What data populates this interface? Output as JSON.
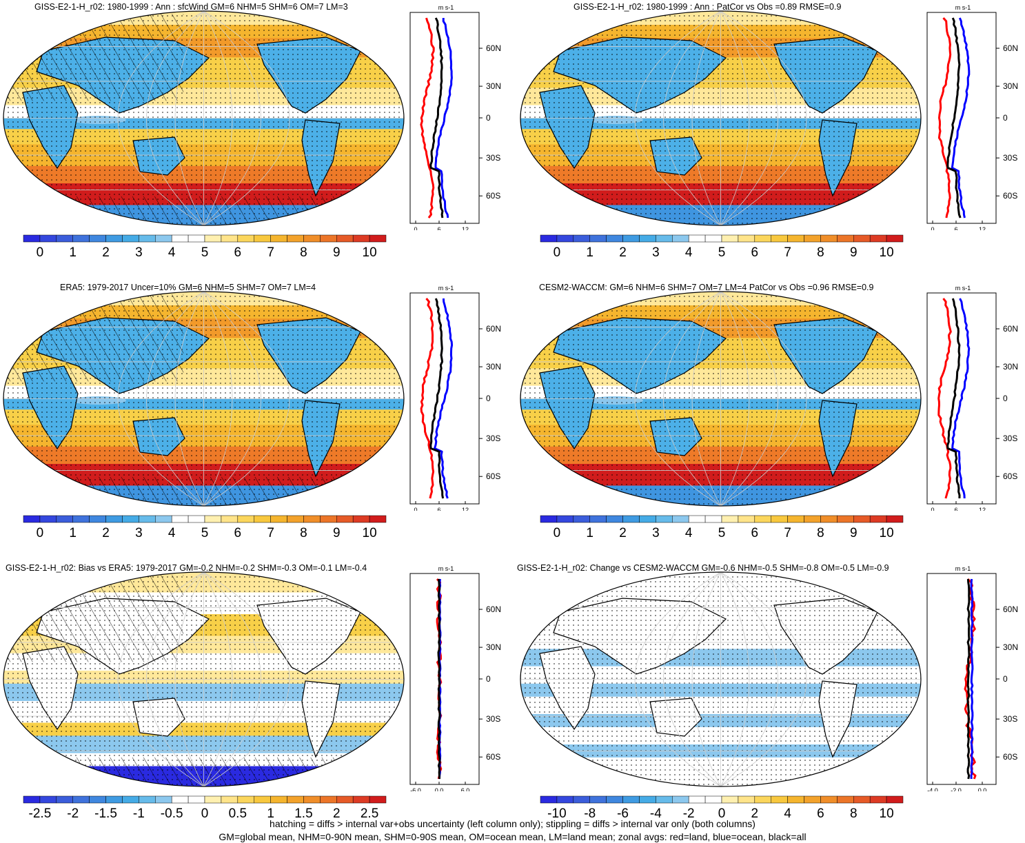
{
  "panels": [
    {
      "title": "GISS-E2-1-H_r02: 1980-1999 : Ann : sfcWind GM=6 NHM=5 SHM=6 OM=7 LM=3",
      "colorbar_labels": [
        "0",
        "1",
        "2",
        "3",
        "4",
        "5",
        "6",
        "7",
        "8",
        "9",
        "10"
      ],
      "zonal_unit": "m s-1",
      "zonal_xticks": [
        "0",
        "6",
        "12"
      ],
      "lat_ticks": [
        "60N",
        "30N",
        "0",
        "30S",
        "60S"
      ],
      "hatching": true,
      "style": "mean"
    },
    {
      "title": "GISS-E2-1-H_r02: 1980-1999 : Ann : PatCor vs Obs =0.89 RMSE=0.9",
      "colorbar_labels": [
        "0",
        "1",
        "2",
        "3",
        "4",
        "5",
        "6",
        "7",
        "8",
        "9",
        "10"
      ],
      "zonal_unit": "m s-1",
      "zonal_xticks": [
        "0",
        "6",
        "12"
      ],
      "lat_ticks": [
        "60N",
        "30N",
        "0",
        "30S",
        "60S"
      ],
      "hatching": false,
      "style": "mean"
    },
    {
      "title": "ERA5: 1979-2017 Uncer=10% GM=6 NHM=5 SHM=7 OM=7 LM=4",
      "colorbar_labels": [
        "0",
        "1",
        "2",
        "3",
        "4",
        "5",
        "6",
        "7",
        "8",
        "9",
        "10"
      ],
      "zonal_unit": "m s-1",
      "zonal_xticks": [
        "0",
        "6",
        "12"
      ],
      "lat_ticks": [
        "60N",
        "30N",
        "0",
        "30S",
        "60S"
      ],
      "hatching": true,
      "style": "mean"
    },
    {
      "title": "CESM2-WACCM: GM=6 NHM=6 SHM=7 OM=7 LM=4 PatCor vs Obs =0.96 RMSE=0.9",
      "colorbar_labels": [
        "0",
        "1",
        "2",
        "3",
        "4",
        "5",
        "6",
        "7",
        "8",
        "9",
        "10"
      ],
      "zonal_unit": "m s-1",
      "zonal_xticks": [
        "0",
        "6",
        "12"
      ],
      "lat_ticks": [
        "60N",
        "30N",
        "0",
        "30S",
        "60S"
      ],
      "hatching": false,
      "style": "mean"
    },
    {
      "title": "GISS-E2-1-H_r02: Bias vs ERA5: 1979-2017 GM=-0.2 NHM=-0.2 SHM=-0.3 OM=-0.1 LM=-0.4",
      "colorbar_labels": [
        "-2.5",
        "-2",
        "-1.5",
        "-1",
        "-0.5",
        "0",
        "0.5",
        "1",
        "1.5",
        "2",
        "2.5"
      ],
      "zonal_unit": "m s-1",
      "zonal_xticks": [
        "-6.0",
        "0.0",
        "6.0"
      ],
      "lat_ticks": [
        "60N",
        "30N",
        "0",
        "30S",
        "60S"
      ],
      "hatching": true,
      "style": "bias"
    },
    {
      "title": "GISS-E2-1-H_r02: Change vs CESM2-WACCM GM=-0.6 NHM=-0.5 SHM=-0.8 OM=-0.5 LM=-0.9",
      "colorbar_labels": [
        "-10",
        "-8",
        "-6",
        "-4",
        "-2",
        "0",
        "2",
        "4",
        "6",
        "8",
        "10"
      ],
      "zonal_unit": "m s-1",
      "zonal_xticks": [
        "-4.0",
        "-2.0",
        "0.0"
      ],
      "lat_ticks": [
        "60N",
        "30N",
        "0",
        "30S",
        "60S"
      ],
      "hatching": false,
      "style": "change"
    }
  ],
  "footer": {
    "line1": "hatching = diffs > internal var+obs uncertainty (left column only); stippling = diffs > internal var only (both columns)",
    "line2": "GM=global mean, NHM=0-90N mean, SHM=0-90S mean, OM=ocean mean, LM=land mean; zonal avgs: red=land, blue=ocean, black=all"
  },
  "colors": {
    "scale": [
      "#2a2ae0",
      "#3b56d8",
      "#3f78dc",
      "#3f95e0",
      "#4cb0e8",
      "#8cc8ee",
      "#ffffff",
      "#ffe89a",
      "#f8d048",
      "#f5b52e",
      "#f29a2a",
      "#ee7a28",
      "#e84826",
      "#d11c1c"
    ],
    "land_line": "#ff0000",
    "ocean_line": "#0000ff",
    "all_line": "#000000"
  }
}
